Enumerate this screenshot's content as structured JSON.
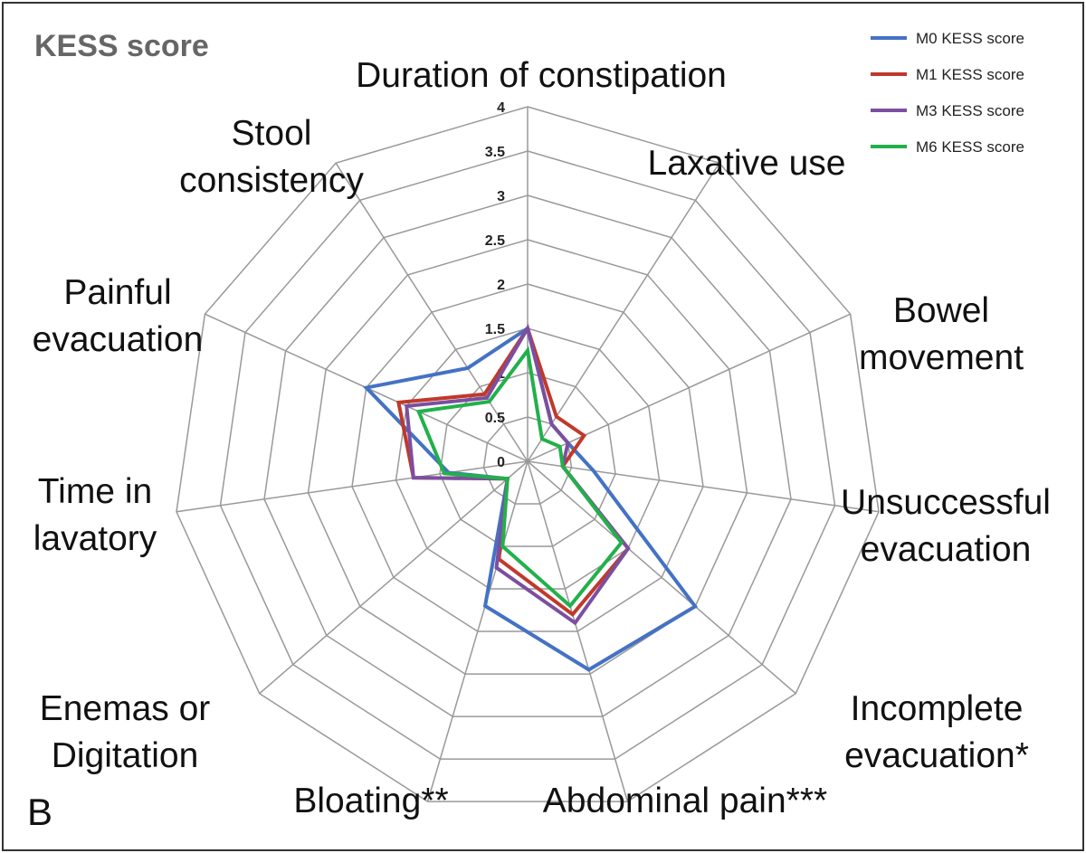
{
  "chart_data": {
    "type": "radar",
    "title": "KESS score",
    "panel_label": "B",
    "categories": [
      "Duration of constipation",
      "Laxative use",
      "Bowel movement",
      "Unsuccessful evacuation",
      "Incomplete evacuation*",
      "Abdominal pain***",
      "Bloating**",
      "Enemas or Digitation",
      "Time in lavatory",
      "Painful evacuation",
      "Stool consistency"
    ],
    "series": [
      {
        "name": "M0 KESS score",
        "color": "#4472c4",
        "values": [
          1.5,
          0.5,
          0.5,
          0.75,
          2.5,
          2.45,
          1.7,
          0.3,
          0.9,
          2.0,
          1.25
        ]
      },
      {
        "name": "M1 KESS score",
        "color": "#c0392b",
        "values": [
          1.5,
          0.6,
          0.7,
          0.4,
          1.5,
          1.8,
          1.15,
          0.3,
          1.3,
          1.6,
          0.9
        ]
      },
      {
        "name": "M3 KESS score",
        "color": "#7b4fa0",
        "values": [
          1.5,
          0.5,
          0.5,
          0.4,
          1.5,
          1.9,
          1.25,
          0.3,
          1.3,
          1.5,
          0.85
        ]
      },
      {
        "name": "M6 KESS score",
        "color": "#22b04b",
        "values": [
          1.25,
          0.3,
          0.4,
          0.4,
          1.4,
          1.7,
          1.0,
          0.3,
          0.95,
          1.35,
          0.8
        ]
      }
    ],
    "rlim": [
      0,
      4
    ],
    "rticks": [
      0,
      0.5,
      1,
      1.5,
      2,
      2.5,
      3,
      3.5,
      4
    ],
    "grid": true,
    "legend": "top-right"
  }
}
